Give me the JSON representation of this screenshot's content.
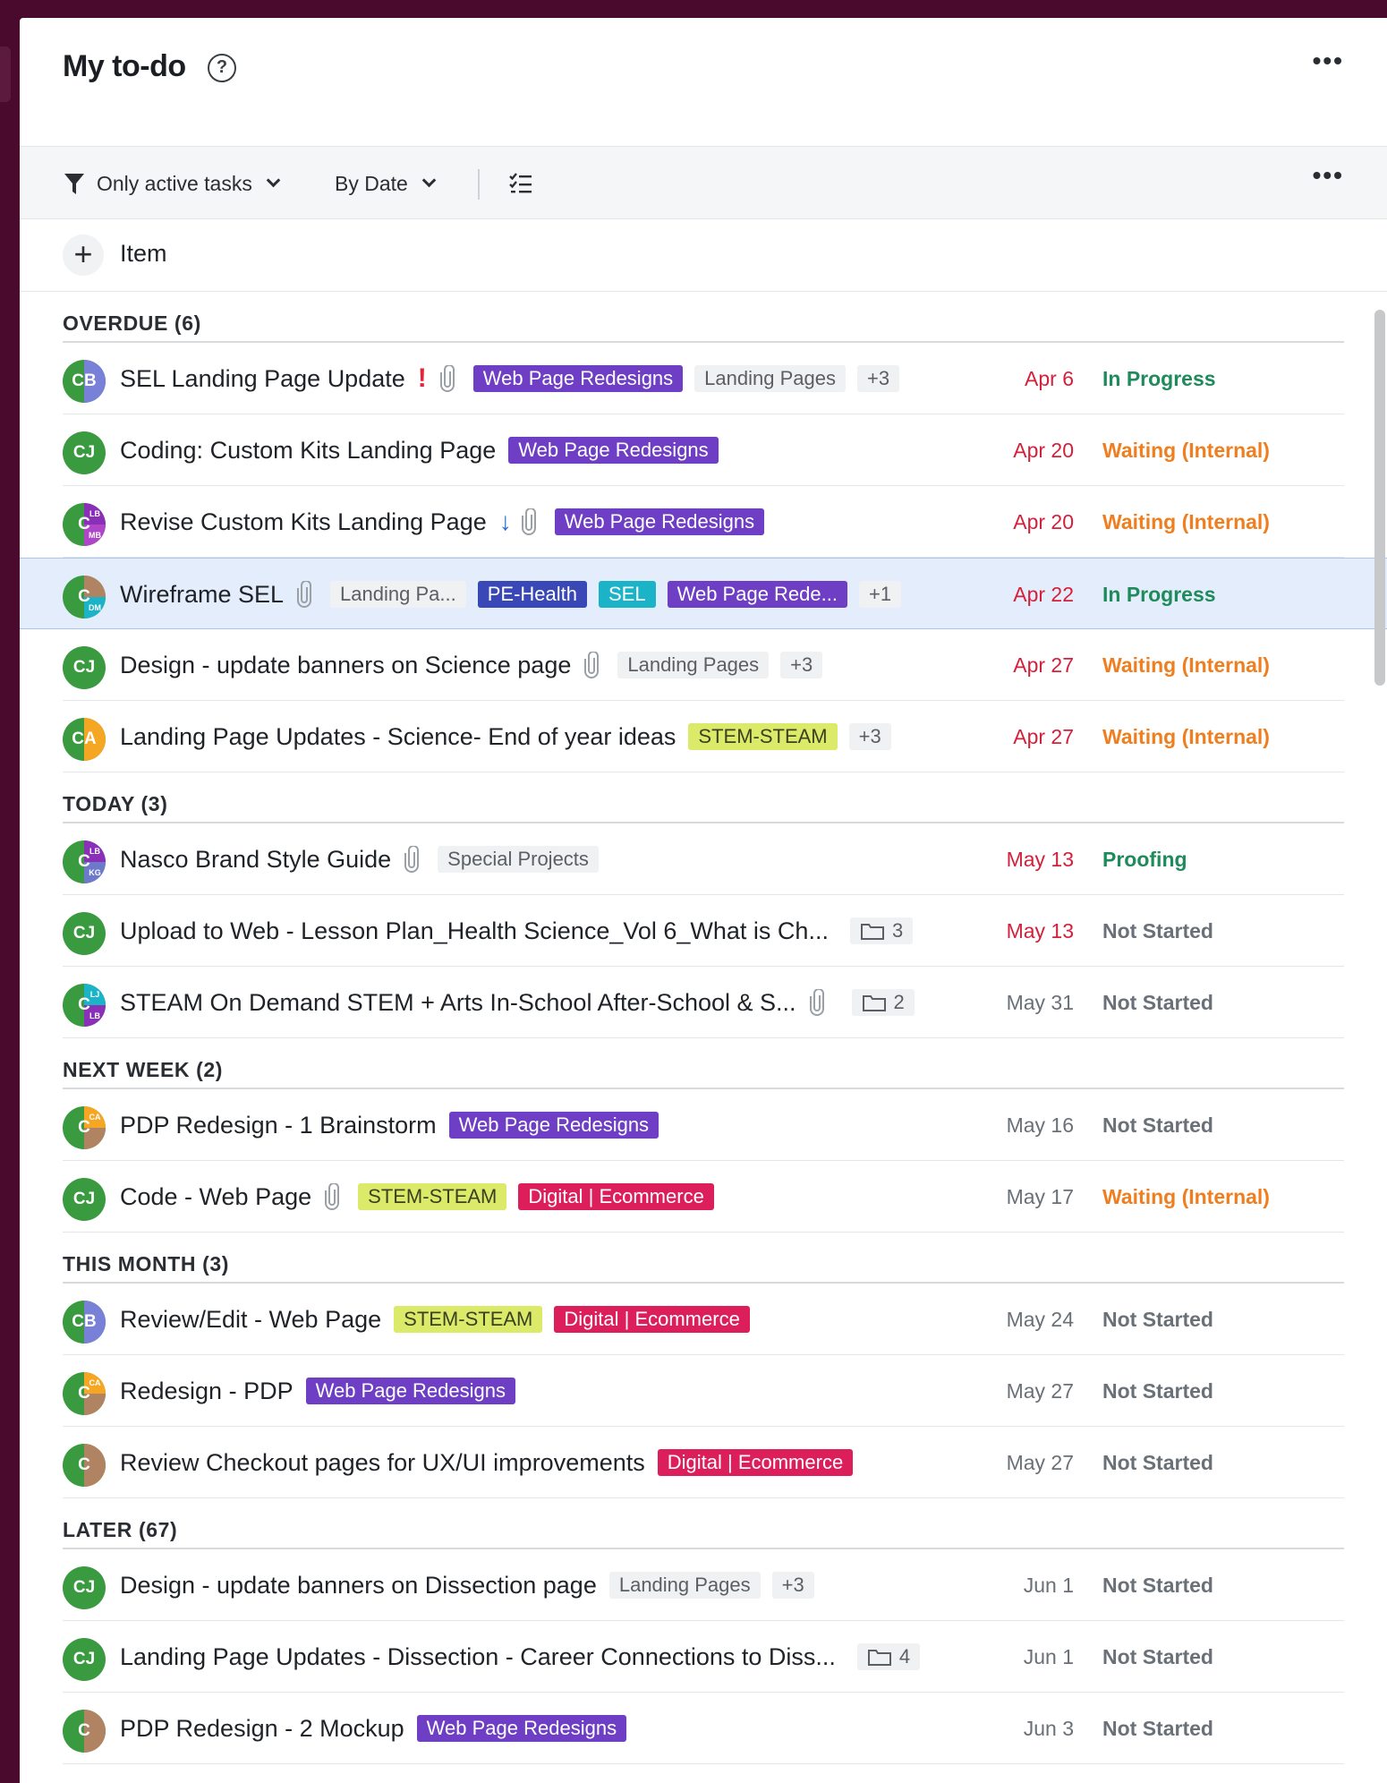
{
  "page": {
    "title": "My to-do"
  },
  "toolbar": {
    "filter_label": "Only active tasks",
    "sort_label": "By Date"
  },
  "add_item": {
    "label": "Item"
  },
  "colors": {
    "overdue_date": "#d4203a",
    "in_progress": "#1f8a5b",
    "waiting": "#f07e1f",
    "not_started": "#6a7077",
    "selected_row": "#e3edfb",
    "sidebar": "#4a0a2e"
  },
  "sections": [
    {
      "label": "OVERDUE (6)",
      "tasks": [
        {
          "avatar": "CB",
          "title": "SEL Landing Page Update",
          "priority": "!",
          "attachment": true,
          "tags": [
            {
              "label": "Web Page Redesigns",
              "color": "purple"
            },
            {
              "label": "Landing Pages",
              "color": "gray"
            },
            {
              "label": "+3",
              "color": "gray"
            }
          ],
          "date": "Apr 6",
          "status": "In Progress"
        },
        {
          "avatar": "CJ",
          "title": "Coding: Custom Kits Landing Page",
          "attachment": false,
          "tags": [
            {
              "label": "Web Page Redesigns",
              "color": "purple"
            }
          ],
          "date": "Apr 20",
          "status": "Waiting (Internal)"
        },
        {
          "avatar": "C",
          "avatar_extra": [
            "LB",
            "MB"
          ],
          "title": "Revise Custom Kits Landing Page",
          "priority_icon": "low-priority-arrow-icon",
          "attachment": true,
          "tags": [
            {
              "label": "Web Page Redesigns",
              "color": "purple"
            }
          ],
          "date": "Apr 20",
          "status": "Waiting (Internal)"
        },
        {
          "avatar": "C",
          "avatar_extra": [
            "",
            "DM"
          ],
          "title": "Wireframe SEL",
          "attachment": true,
          "selected": true,
          "tags": [
            {
              "label": "Landing Pa...",
              "color": "gray"
            },
            {
              "label": "PE-Health",
              "color": "navy"
            },
            {
              "label": "SEL",
              "color": "teal"
            },
            {
              "label": "Web Page Rede...",
              "color": "purple"
            },
            {
              "label": "+1",
              "color": "gray"
            }
          ],
          "date": "Apr 22",
          "status": "In Progress"
        },
        {
          "avatar": "CJ",
          "title": "Design - update banners on Science page",
          "attachment": true,
          "tags": [
            {
              "label": "Landing Pages",
              "color": "gray"
            },
            {
              "label": "+3",
              "color": "gray"
            }
          ],
          "date": "Apr 27",
          "status": "Waiting (Internal)"
        },
        {
          "avatar": "CA",
          "title": "Landing Page Updates - Science- End of year ideas",
          "attachment": false,
          "tags": [
            {
              "label": "STEM-STEAM",
              "color": "yellow"
            },
            {
              "label": "+3",
              "color": "gray"
            }
          ],
          "date": "Apr 27",
          "status": "Waiting (Internal)"
        }
      ]
    },
    {
      "label": "TODAY (3)",
      "tasks": [
        {
          "avatar": "C",
          "avatar_extra": [
            "LB",
            "KG"
          ],
          "title": "Nasco Brand Style Guide",
          "attachment": true,
          "tags": [
            {
              "label": "Special Projects",
              "color": "gray"
            }
          ],
          "date": "May 13",
          "status": "Proofing"
        },
        {
          "avatar": "CJ",
          "title": "Upload to Web - Lesson Plan_Health Science_Vol 6_What is Ch...",
          "attachment": false,
          "subitems": "3",
          "tags": [],
          "date": "May 13",
          "status": "Not Started"
        },
        {
          "avatar": "C",
          "avatar_extra": [
            "LJ",
            "LB"
          ],
          "title": "STEAM On Demand STEM + Arts In-School After-School & S...",
          "attachment": true,
          "subitems": "2",
          "tags": [],
          "date": "May 31",
          "status": "Not Started"
        }
      ]
    },
    {
      "label": "NEXT WEEK (2)",
      "tasks": [
        {
          "avatar": "C",
          "avatar_extra": [
            "CA",
            ""
          ],
          "title": "PDP Redesign - 1 Brainstorm",
          "attachment": false,
          "tags": [
            {
              "label": "Web Page Redesigns",
              "color": "purple"
            }
          ],
          "date": "May 16",
          "status": "Not Started"
        },
        {
          "avatar": "CJ",
          "title": "Code - Web Page",
          "attachment": true,
          "tags": [
            {
              "label": "STEM-STEAM",
              "color": "yellow"
            },
            {
              "label": "Digital | Ecommerce",
              "color": "red"
            }
          ],
          "date": "May 17",
          "status": "Waiting (Internal)"
        }
      ]
    },
    {
      "label": "THIS MONTH (3)",
      "tasks": [
        {
          "avatar": "CB",
          "title": "Review/Edit - Web Page",
          "attachment": false,
          "tags": [
            {
              "label": "STEM-STEAM",
              "color": "yellow"
            },
            {
              "label": "Digital | Ecommerce",
              "color": "red"
            }
          ],
          "date": "May 24",
          "status": "Not Started"
        },
        {
          "avatar": "C",
          "avatar_extra": [
            "CA",
            ""
          ],
          "title": "Redesign - PDP",
          "attachment": false,
          "tags": [
            {
              "label": "Web Page Redesigns",
              "color": "purple"
            }
          ],
          "date": "May 27",
          "status": "Not Started"
        },
        {
          "avatar": "C",
          "avatar_extra": [
            "",
            ""
          ],
          "title": "Review Checkout pages for UX/UI improvements",
          "attachment": false,
          "tags": [
            {
              "label": "Digital | Ecommerce",
              "color": "red"
            }
          ],
          "date": "May 27",
          "status": "Not Started"
        }
      ]
    },
    {
      "label": "LATER (67)",
      "tasks": [
        {
          "avatar": "CJ",
          "title": "Design - update banners on Dissection page",
          "attachment": false,
          "tags": [
            {
              "label": "Landing Pages",
              "color": "gray"
            },
            {
              "label": "+3",
              "color": "gray"
            }
          ],
          "date": "Jun 1",
          "status": "Not Started"
        },
        {
          "avatar": "CJ",
          "title": "Landing Page Updates - Dissection - Career Connections to Diss...",
          "attachment": false,
          "subitems": "4",
          "tags": [],
          "date": "Jun 1",
          "status": "Not Started"
        },
        {
          "avatar": "C",
          "avatar_extra": [
            "",
            ""
          ],
          "title": "PDP Redesign - 2 Mockup",
          "attachment": false,
          "tags": [
            {
              "label": "Web Page Redesigns",
              "color": "purple"
            }
          ],
          "date": "Jun 3",
          "status": "Not Started"
        }
      ]
    }
  ]
}
